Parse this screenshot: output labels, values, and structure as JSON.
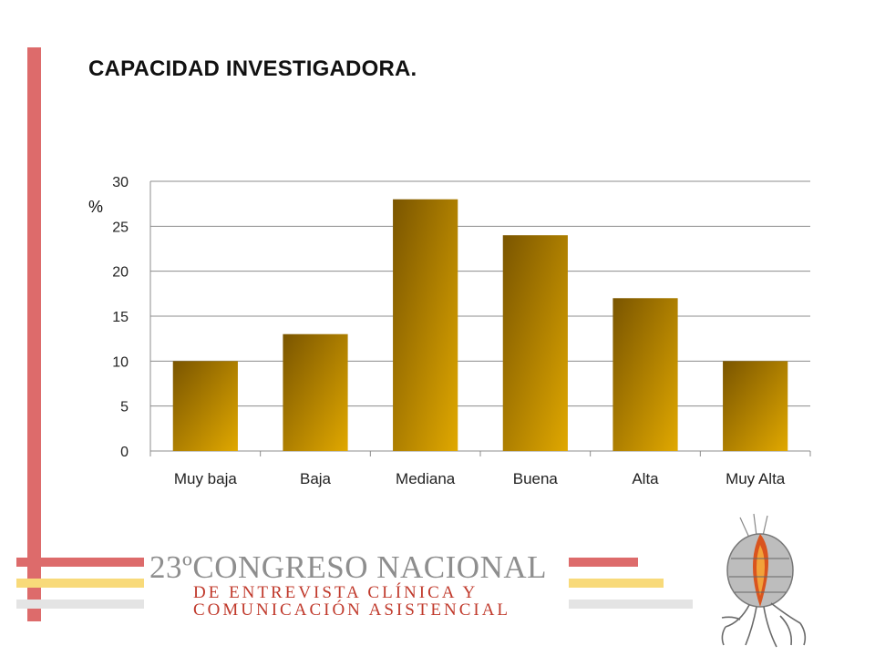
{
  "slide": {
    "title": "CAPACIDAD INVESTIGADORA."
  },
  "chart_data": {
    "type": "bar",
    "title": "",
    "ylabel": "%",
    "xlabel": "",
    "categories": [
      "Muy baja",
      "Baja",
      "Mediana",
      "Buena",
      "Alta",
      "Muy Alta"
    ],
    "values": [
      10,
      13,
      28,
      24,
      17,
      10
    ],
    "ylim": [
      0,
      30
    ],
    "yticks": [
      0,
      5,
      10,
      15,
      20,
      25,
      30
    ],
    "grid": true,
    "legend": "none",
    "bar_color_dark": "#7a5500",
    "bar_color_light": "#e0a800"
  },
  "banner": {
    "line1": "23ºCONGRESO NACIONAL",
    "line2": "DE ENTREVISTA CLÍNICA Y",
    "line3": "COMUNICACIÓN ASISTENCIAL"
  },
  "colors": {
    "accent_red": "#dd6b6b",
    "accent_yellow": "#f8da7a",
    "accent_gray": "#e4e4e4",
    "banner_red": "#c0392b"
  }
}
